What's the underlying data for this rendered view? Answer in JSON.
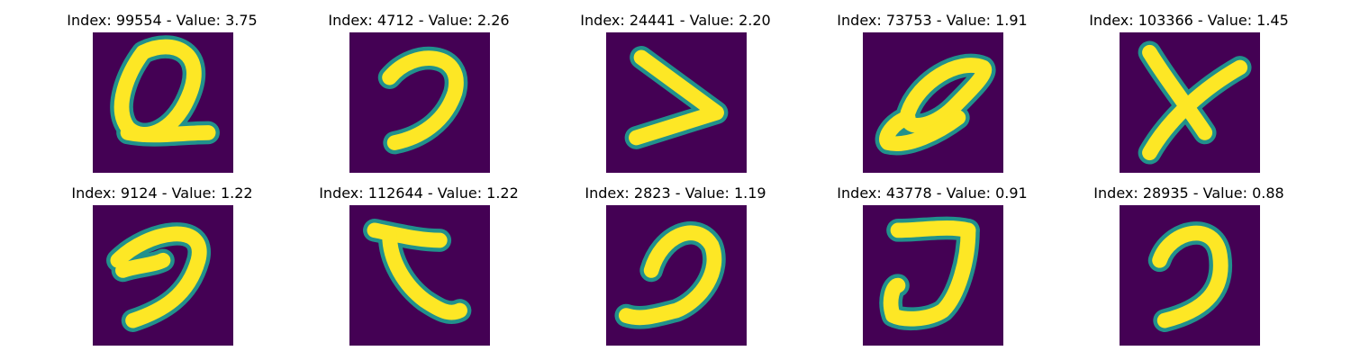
{
  "colors": {
    "background": "#440154",
    "edge_teal": "#21918c",
    "mid_green": "#5ec962",
    "foreground": "#fde725"
  },
  "panels": [
    {
      "title": "Index: 99554 - Value: 3.75",
      "icon": "letter-q-glyph"
    },
    {
      "title": "Index: 4712 - Value: 2.26",
      "icon": "hook-glyph"
    },
    {
      "title": "Index: 24441 - Value: 2.20",
      "icon": "greater-than-glyph"
    },
    {
      "title": "Index: 73753 - Value: 1.91",
      "icon": "slanted-loop-glyph"
    },
    {
      "title": "Index: 103366 - Value: 1.45",
      "icon": "letter-x-glyph"
    },
    {
      "title": "Index: 9124 - Value: 1.22",
      "icon": "hook-glyph"
    },
    {
      "title": "Index: 112644 - Value: 1.22",
      "icon": "letter-c-glyph"
    },
    {
      "title": "Index: 2823 - Value: 1.19",
      "icon": "hook-glyph"
    },
    {
      "title": "Index: 43778 - Value: 0.91",
      "icon": "letter-j-glyph"
    },
    {
      "title": "Index: 28935 - Value: 0.88",
      "icon": "hook-glyph"
    }
  ]
}
